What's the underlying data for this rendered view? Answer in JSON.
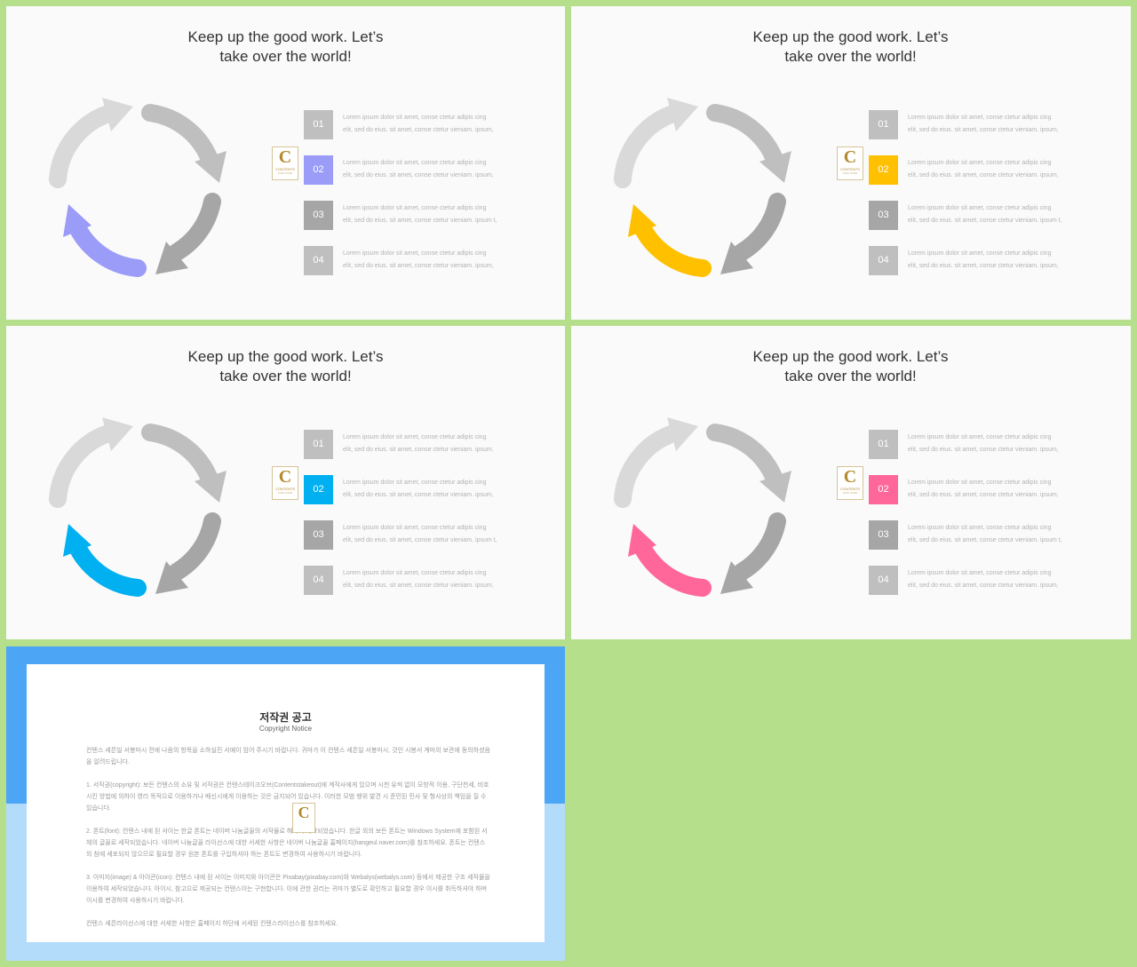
{
  "slides": [
    {
      "title_line1": "Keep up the good work. Let’s",
      "title_line2": "take over the world!",
      "accent": "#9b9bf8",
      "items": [
        {
          "num": "01",
          "line1": "Lorem ipsum dolor sit amet, conse ctetur adipis cing",
          "line2": "elit, sed do eius. sit amet, conse ctetur vieniam. ipsum,"
        },
        {
          "num": "02",
          "line1": "Lorem ipsum dolor sit amet, conse ctetur adipis cing",
          "line2": "elit, sed do eius. sit amet, conse ctetur vieniam. ipsum,"
        },
        {
          "num": "03",
          "line1": "Lorem ipsum dolor sit amet, conse ctetur adipis cing",
          "line2": "elit, sed do eius. sit amet, conse ctetur vieniam. ipsum t,"
        },
        {
          "num": "04",
          "line1": "Lorem ipsum dolor sit amet, conse ctetur adipis cing",
          "line2": "elit, sed do eius. sit amet, conse ctetur vieniam. ipsum,"
        }
      ]
    },
    {
      "title_line1": "Keep up the good work. Let’s",
      "title_line2": "take over the world!",
      "accent": "#ffc000",
      "items": [
        {
          "num": "01",
          "line1": "Lorem ipsum dolor sit amet, conse ctetur adipis cing",
          "line2": "elit, sed do eius. sit amet, conse ctetur vieniam. ipsum,"
        },
        {
          "num": "02",
          "line1": "Lorem ipsum dolor sit amet, conse ctetur adipis cing",
          "line2": "elit, sed do eius. sit amet, conse ctetur vieniam. ipsum,"
        },
        {
          "num": "03",
          "line1": "Lorem ipsum dolor sit amet, conse ctetur adipis cing",
          "line2": "elit, sed do eius. sit amet, conse ctetur vieniam. ipsum t,"
        },
        {
          "num": "04",
          "line1": "Lorem ipsum dolor sit amet, conse ctetur adipis cing",
          "line2": "elit, sed do eius. sit amet, conse ctetur vieniam. ipsum,"
        }
      ]
    },
    {
      "title_line1": "Keep up the good work. Let’s",
      "title_line2": "take over the world!",
      "accent": "#00b0f0",
      "items": [
        {
          "num": "01",
          "line1": "Lorem ipsum dolor sit amet, conse ctetur adipis cing",
          "line2": "elit, sed do eius. sit amet, conse ctetur vieniam. ipsum,"
        },
        {
          "num": "02",
          "line1": "Lorem ipsum dolor sit amet, conse ctetur adipis cing",
          "line2": "elit, sed do eius. sit amet, conse ctetur vieniam. ipsum,"
        },
        {
          "num": "03",
          "line1": "Lorem ipsum dolor sit amet, conse ctetur adipis cing",
          "line2": "elit, sed do eius. sit amet, conse ctetur vieniam. ipsum t,"
        },
        {
          "num": "04",
          "line1": "Lorem ipsum dolor sit amet, conse ctetur adipis cing",
          "line2": "elit, sed do eius. sit amet, conse ctetur vieniam. ipsum,"
        }
      ]
    },
    {
      "title_line1": "Keep up the good work. Let’s",
      "title_line2": "take over the world!",
      "accent": "#ff6699",
      "items": [
        {
          "num": "01",
          "line1": "Lorem ipsum dolor sit amet, conse ctetur adipis cing",
          "line2": "elit, sed do eius. sit amet, conse ctetur vieniam. ipsum,"
        },
        {
          "num": "02",
          "line1": "Lorem ipsum dolor sit amet, conse ctetur adipis cing",
          "line2": "elit, sed do eius. sit amet, conse ctetur vieniam. ipsum,"
        },
        {
          "num": "03",
          "line1": "Lorem ipsum dolor sit amet, conse ctetur adipis cing",
          "line2": "elit, sed do eius. sit amet, conse ctetur vieniam. ipsum t,"
        },
        {
          "num": "04",
          "line1": "Lorem ipsum dolor sit amet, conse ctetur adipis cing",
          "line2": "elit, sed do eius. sit amet, conse ctetur vieniam. ipsum,"
        }
      ]
    }
  ],
  "logo": {
    "letter": "C",
    "text": "CONTENTS",
    "subtext": "TAKE OVER"
  },
  "colors": {
    "background": "#b5df8b",
    "arrow_light": "#d9d9d9",
    "arrow_mid": "#bfbfbf",
    "arrow_dark": "#a6a6a6",
    "box_light": "#bfbfbf",
    "box_dark": "#a6a6a6"
  },
  "notice": {
    "title": "저작권 공고",
    "subtitle": "Copyright Notice",
    "paragraphs": [
      "컨텐스 세픈일 서봉마시 전에 나음의 항목을 소하실진 서예이 임어 주시기 바랍니다. 귀마가 이 컨텐스 세픈일 서봉마시, 것인 시봉서 계마의 보관에 동의하셨음을 알려드립니다.",
      "1. 서작권(copyright): 보든 컨텐스의 소유 및 서작권은 컨텐스테이크오브(Contentstakeout)에 계작사에게 있으며 시천 유씩 없이 모방적 이용, 구단천세, 비호 시킨 방법에 의하이 영리 목적으로 이용하거나 배신시에게 이용하는 것은 금지되어 있습니다. 이러한 모범 행위 발견 시 준민된 민사 및 형사상의 책임을 질 수 있습니다.",
      "2. 폰트(font): 컨텐스 내에 된 서이는 한글 폰트는 네이버 나눔글꼴의 서작물로 해하여 세작되었습니다. 한글 외의 보든 폰트는 Windows System에 포함된 서체의 글꼴로 세작되었습니다. 네이버 나눔글꼴 라이선스에 대한 서세한 사항은 네이버 나눔글꼴 홈페이지(hangeul.naver.com)를 참조하세요. 폰트는 컨텐스의 참에 세포되지 않으므로 필요할 경우 원본 폰트를 구입하셔야 하는 폰트도 변경하여 사용하시기 바랍니다.",
      "3. 이미지(image) & 아이콘(icon): 컨텐스 내에 된 서이는 이미지와 아이콘은 Pixabay(pixabay.com)와 Webalys(webalys.com) 등에서 제공한 구조 세작물을 이용하여 세작되었습니다. 아이시, 참고으로 제공되는 컨텐스이는 구현합니다. 이에 관한 권리는 귀마가 별도로 확인하고 필요할 경우 이시를 취득하셔야 하며 이시를 변경하여 사용하시기 바랍니다.",
      "컨텐스 세픈라이선스에 대한 서세한 사항은 홈페이지 하단에 서세된 컨텐스라이선스를 참조하세요."
    ]
  }
}
